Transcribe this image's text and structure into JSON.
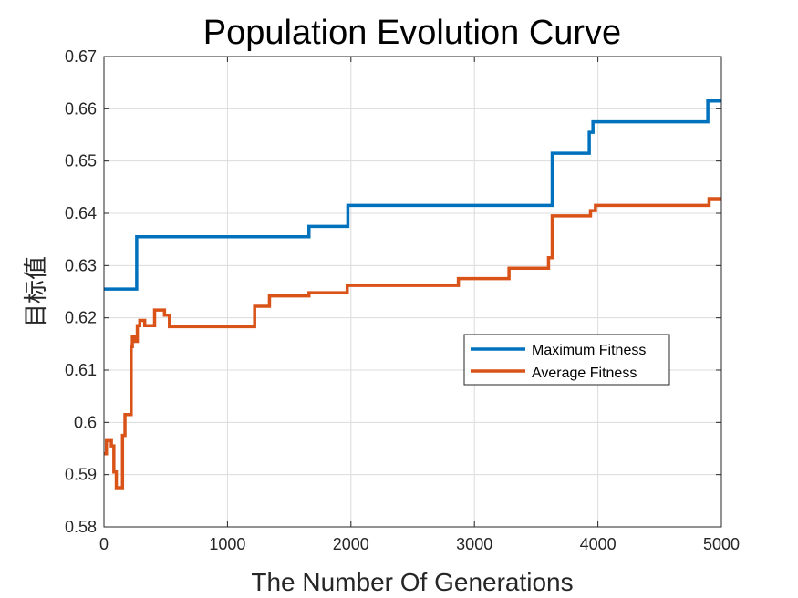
{
  "chart_data": {
    "type": "line",
    "title": "Population Evolution Curve",
    "xlabel": "The Number Of Generations",
    "ylabel": "目标值",
    "xlim": [
      0,
      5000
    ],
    "ylim": [
      0.58,
      0.67
    ],
    "x_ticks": [
      0,
      1000,
      2000,
      3000,
      4000,
      5000
    ],
    "x_tick_labels": [
      "0",
      "1000",
      "2000",
      "3000",
      "4000",
      "5000"
    ],
    "y_ticks": [
      0.58,
      0.59,
      0.6,
      0.61,
      0.62,
      0.63,
      0.64,
      0.65,
      0.66,
      0.67
    ],
    "y_tick_labels": [
      "0.58",
      "0.59",
      "0.6",
      "0.61",
      "0.62",
      "0.63",
      "0.64",
      "0.65",
      "0.66",
      "0.67"
    ],
    "grid": true,
    "legend_position": "center-right",
    "series": [
      {
        "name": "Maximum Fitness",
        "color": "#0072BD",
        "step": true,
        "points": [
          [
            0,
            0.6255
          ],
          [
            265,
            0.6255
          ],
          [
            265,
            0.6355
          ],
          [
            1660,
            0.6355
          ],
          [
            1660,
            0.6375
          ],
          [
            1975,
            0.6375
          ],
          [
            1975,
            0.6415
          ],
          [
            3630,
            0.6415
          ],
          [
            3630,
            0.6515
          ],
          [
            3930,
            0.6515
          ],
          [
            3930,
            0.6555
          ],
          [
            3960,
            0.6555
          ],
          [
            3960,
            0.6575
          ],
          [
            4890,
            0.6575
          ],
          [
            4890,
            0.6615
          ],
          [
            5000,
            0.6615
          ]
        ]
      },
      {
        "name": "Average Fitness",
        "color": "#D95319",
        "step": true,
        "points": [
          [
            0,
            0.594
          ],
          [
            20,
            0.594
          ],
          [
            20,
            0.5965
          ],
          [
            60,
            0.5965
          ],
          [
            60,
            0.5955
          ],
          [
            80,
            0.5955
          ],
          [
            80,
            0.5905
          ],
          [
            100,
            0.5905
          ],
          [
            100,
            0.5875
          ],
          [
            150,
            0.5875
          ],
          [
            150,
            0.5975
          ],
          [
            170,
            0.5975
          ],
          [
            170,
            0.6015
          ],
          [
            220,
            0.6015
          ],
          [
            220,
            0.6145
          ],
          [
            230,
            0.6145
          ],
          [
            230,
            0.6165
          ],
          [
            250,
            0.6165
          ],
          [
            250,
            0.6155
          ],
          [
            270,
            0.6155
          ],
          [
            270,
            0.6185
          ],
          [
            290,
            0.6185
          ],
          [
            290,
            0.6195
          ],
          [
            330,
            0.6195
          ],
          [
            330,
            0.6185
          ],
          [
            410,
            0.6185
          ],
          [
            410,
            0.6215
          ],
          [
            490,
            0.6215
          ],
          [
            490,
            0.6205
          ],
          [
            530,
            0.6205
          ],
          [
            530,
            0.6183
          ],
          [
            1220,
            0.6183
          ],
          [
            1220,
            0.6222
          ],
          [
            1340,
            0.6222
          ],
          [
            1340,
            0.6242
          ],
          [
            1660,
            0.6242
          ],
          [
            1660,
            0.6248
          ],
          [
            1970,
            0.6248
          ],
          [
            1970,
            0.6262
          ],
          [
            2870,
            0.6262
          ],
          [
            2870,
            0.6275
          ],
          [
            3280,
            0.6275
          ],
          [
            3280,
            0.6295
          ],
          [
            3600,
            0.6295
          ],
          [
            3600,
            0.6315
          ],
          [
            3630,
            0.6315
          ],
          [
            3630,
            0.6395
          ],
          [
            3940,
            0.6395
          ],
          [
            3940,
            0.6405
          ],
          [
            3980,
            0.6405
          ],
          [
            3980,
            0.6415
          ],
          [
            4900,
            0.6415
          ],
          [
            4900,
            0.6428
          ],
          [
            5000,
            0.6428
          ]
        ]
      }
    ]
  }
}
